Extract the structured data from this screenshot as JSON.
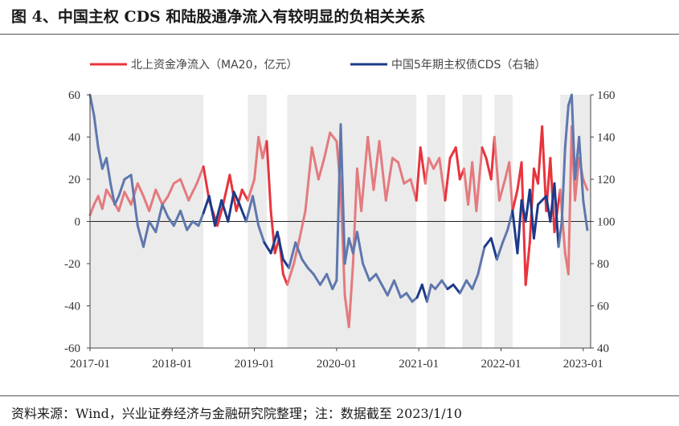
{
  "figure": {
    "title": "图 4、中国主权 CDS 和陆股通净流入有较明显的负相关关系",
    "source": "资料来源：Wind，兴业证券经济与金融研究院整理；注：数据截至 2023/1/10"
  },
  "chart_data": {
    "type": "line",
    "xlabel": "",
    "ylabel": "",
    "x_ticks": [
      "2017-01",
      "2018-01",
      "2019-01",
      "2020-01",
      "2021-01",
      "2022-01",
      "2023-01"
    ],
    "x_range": [
      2017.0,
      2023.09
    ],
    "y_left": {
      "range": [
        -60,
        60
      ],
      "ticks": [
        60,
        40,
        20,
        0,
        -20,
        -40,
        -60
      ]
    },
    "y_right": {
      "range": [
        40,
        160
      ],
      "ticks": [
        160,
        140,
        120,
        100,
        80,
        60,
        40
      ]
    },
    "zero_line": 0,
    "shaded_periods": [
      [
        2017.0,
        2018.38
      ],
      [
        2018.92,
        2019.15
      ],
      [
        2019.4,
        2020.97
      ],
      [
        2021.1,
        2021.32
      ],
      [
        2021.53,
        2021.77
      ],
      [
        2021.92,
        2022.14
      ],
      [
        2022.72,
        2023.09
      ]
    ],
    "series": [
      {
        "name": "北上资金净流入（MA20，亿元）",
        "axis": "left",
        "color": "#e8343c",
        "faded_color": "#e47a7e",
        "x": [
          2017.0,
          2017.05,
          2017.1,
          2017.15,
          2017.2,
          2017.28,
          2017.35,
          2017.42,
          2017.5,
          2017.58,
          2017.65,
          2017.72,
          2017.8,
          2017.88,
          2017.95,
          2018.02,
          2018.1,
          2018.2,
          2018.3,
          2018.38,
          2018.45,
          2018.55,
          2018.62,
          2018.7,
          2018.78,
          2018.85,
          2018.92,
          2019.0,
          2019.05,
          2019.1,
          2019.15,
          2019.2,
          2019.25,
          2019.3,
          2019.35,
          2019.4,
          2019.48,
          2019.55,
          2019.62,
          2019.7,
          2019.78,
          2019.85,
          2019.92,
          2020.0,
          2020.05,
          2020.1,
          2020.15,
          2020.2,
          2020.25,
          2020.3,
          2020.38,
          2020.45,
          2020.52,
          2020.6,
          2020.68,
          2020.75,
          2020.82,
          2020.9,
          2020.97,
          2021.02,
          2021.08,
          2021.12,
          2021.18,
          2021.25,
          2021.32,
          2021.38,
          2021.45,
          2021.5,
          2021.55,
          2021.6,
          2021.65,
          2021.7,
          2021.77,
          2021.82,
          2021.88,
          2021.92,
          2021.98,
          2022.05,
          2022.1,
          2022.14,
          2022.2,
          2022.25,
          2022.3,
          2022.35,
          2022.4,
          2022.45,
          2022.5,
          2022.55,
          2022.6,
          2022.65,
          2022.72,
          2022.78,
          2022.82,
          2022.86,
          2022.9,
          2022.95,
          2023.0,
          2023.05
        ],
        "values": [
          3,
          8,
          12,
          6,
          15,
          10,
          5,
          14,
          8,
          18,
          12,
          5,
          15,
          8,
          12,
          18,
          20,
          10,
          18,
          26,
          10,
          -2,
          8,
          22,
          5,
          15,
          10,
          20,
          40,
          30,
          38,
          5,
          -15,
          -8,
          -25,
          -30,
          -20,
          -8,
          5,
          35,
          20,
          30,
          42,
          38,
          15,
          -35,
          -50,
          -20,
          25,
          5,
          40,
          15,
          38,
          10,
          30,
          28,
          18,
          20,
          10,
          35,
          18,
          30,
          25,
          30,
          10,
          30,
          35,
          20,
          25,
          8,
          28,
          5,
          35,
          30,
          20,
          40,
          10,
          20,
          28,
          5,
          15,
          28,
          -30,
          -10,
          25,
          18,
          45,
          5,
          30,
          -5,
          15,
          -15,
          -25,
          45,
          10,
          30,
          20,
          15
        ]
      },
      {
        "name": "中国5年期主权债CDS（右轴）",
        "axis": "right",
        "color": "#1c3a8a",
        "faded_color": "#5f77ad",
        "x": [
          2017.0,
          2017.05,
          2017.1,
          2017.15,
          2017.2,
          2017.25,
          2017.3,
          2017.35,
          2017.42,
          2017.5,
          2017.58,
          2017.65,
          2017.72,
          2017.8,
          2017.88,
          2017.95,
          2018.02,
          2018.1,
          2018.18,
          2018.25,
          2018.32,
          2018.38,
          2018.45,
          2018.52,
          2018.6,
          2018.68,
          2018.75,
          2018.82,
          2018.9,
          2018.98,
          2019.05,
          2019.12,
          2019.2,
          2019.28,
          2019.35,
          2019.42,
          2019.5,
          2019.58,
          2019.65,
          2019.72,
          2019.8,
          2019.88,
          2019.95,
          2020.0,
          2020.05,
          2020.1,
          2020.15,
          2020.2,
          2020.25,
          2020.32,
          2020.4,
          2020.48,
          2020.55,
          2020.62,
          2020.7,
          2020.78,
          2020.85,
          2020.92,
          2020.98,
          2021.04,
          2021.1,
          2021.15,
          2021.2,
          2021.28,
          2021.35,
          2021.42,
          2021.5,
          2021.58,
          2021.65,
          2021.72,
          2021.8,
          2021.88,
          2021.95,
          2022.02,
          2022.08,
          2022.14,
          2022.2,
          2022.25,
          2022.3,
          2022.35,
          2022.4,
          2022.45,
          2022.5,
          2022.55,
          2022.6,
          2022.65,
          2022.7,
          2022.74,
          2022.78,
          2022.82,
          2022.86,
          2022.9,
          2022.95,
          2023.0,
          2023.05
        ],
        "values": [
          160,
          150,
          135,
          125,
          130,
          118,
          108,
          112,
          120,
          122,
          98,
          88,
          100,
          95,
          108,
          102,
          98,
          105,
          96,
          100,
          98,
          104,
          112,
          98,
          110,
          100,
          114,
          108,
          100,
          112,
          98,
          90,
          85,
          95,
          82,
          78,
          90,
          82,
          78,
          75,
          70,
          75,
          68,
          72,
          146,
          80,
          92,
          85,
          95,
          80,
          72,
          75,
          70,
          65,
          72,
          64,
          66,
          62,
          64,
          70,
          62,
          70,
          68,
          72,
          68,
          70,
          66,
          72,
          68,
          75,
          88,
          92,
          82,
          90,
          96,
          105,
          85,
          110,
          100,
          115,
          92,
          108,
          110,
          112,
          100,
          118,
          88,
          100,
          135,
          155,
          160,
          120,
          140,
          110,
          96
        ]
      }
    ],
    "legend_position": "top-center"
  }
}
